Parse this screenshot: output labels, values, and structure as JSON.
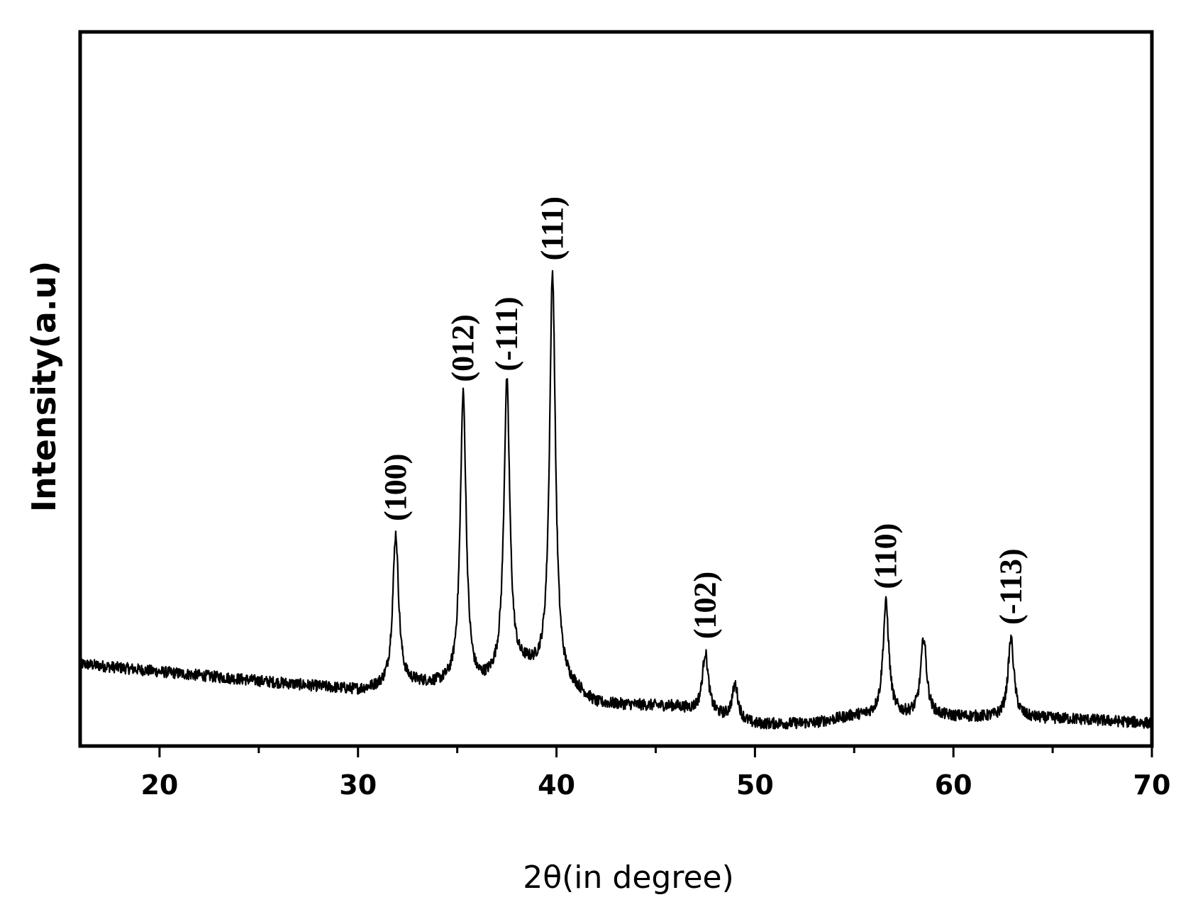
{
  "chart_data": {
    "type": "line",
    "xlabel": "2θ(in degree)",
    "ylabel": "Intensity(a.u)",
    "title": "",
    "xlim": [
      16,
      70
    ],
    "ylim": [
      0,
      100
    ],
    "x_ticks": [
      20,
      30,
      40,
      50,
      60,
      70
    ],
    "x_ticks_minor": [
      25,
      35,
      45,
      55,
      65
    ],
    "grid": false,
    "y_ticks_shown": false,
    "baseline": [
      {
        "x": 16,
        "y": 11.5
      },
      {
        "x": 20,
        "y": 10.4
      },
      {
        "x": 25,
        "y": 9.1
      },
      {
        "x": 30,
        "y": 7.8
      },
      {
        "x": 33,
        "y": 8.6
      },
      {
        "x": 36,
        "y": 8.0
      },
      {
        "x": 38.5,
        "y": 10.5
      },
      {
        "x": 41,
        "y": 7.6
      },
      {
        "x": 42,
        "y": 5.8
      },
      {
        "x": 46,
        "y": 5.5
      },
      {
        "x": 50,
        "y": 3.0
      },
      {
        "x": 53,
        "y": 3.2
      },
      {
        "x": 55,
        "y": 4.2
      },
      {
        "x": 58,
        "y": 4.2
      },
      {
        "x": 62,
        "y": 4.0
      },
      {
        "x": 66,
        "y": 3.8
      },
      {
        "x": 70,
        "y": 3.2
      }
    ],
    "peaks": [
      {
        "x": 31.9,
        "y": 29.5,
        "label": "(100)"
      },
      {
        "x": 35.3,
        "y": 49.0,
        "label": "(012)"
      },
      {
        "x": 37.5,
        "y": 50.5,
        "label": "(-111)"
      },
      {
        "x": 39.8,
        "y": 66.0,
        "label": "(111)"
      },
      {
        "x": 47.5,
        "y": 13.0,
        "label": "(102)"
      },
      {
        "x": 49.0,
        "y": 8.5,
        "label": ""
      },
      {
        "x": 56.6,
        "y": 20.0,
        "label": "(110)"
      },
      {
        "x": 58.5,
        "y": 15.0,
        "label": ""
      },
      {
        "x": 62.9,
        "y": 15.0,
        "label": "(-113)"
      }
    ]
  }
}
